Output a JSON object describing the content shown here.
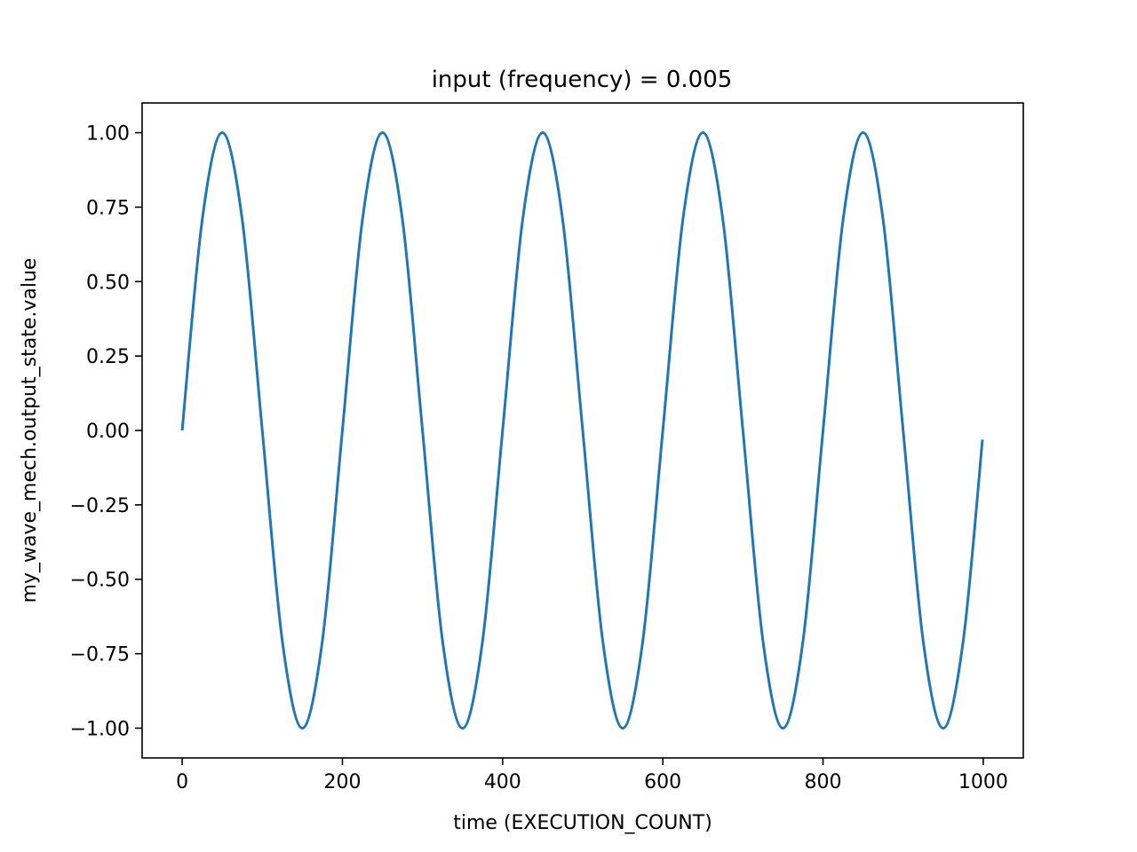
{
  "chart_data": {
    "type": "line",
    "title": "input (frequency) = 0.005",
    "xlabel": "time (EXECUTION_COUNT)",
    "ylabel": "my_wave_mech.output_state.value",
    "xlim": [
      -50,
      1050
    ],
    "ylim": [
      -1.1,
      1.1
    ],
    "xticks": [
      0,
      200,
      400,
      600,
      800,
      1000
    ],
    "xtick_labels": [
      "0",
      "200",
      "400",
      "600",
      "800",
      "1000"
    ],
    "yticks": [
      1.0,
      0.75,
      0.5,
      0.25,
      0.0,
      -0.25,
      -0.5,
      -0.75,
      -1.0
    ],
    "ytick_labels": [
      "1.00",
      "0.75",
      "0.50",
      "0.25",
      "0.00",
      "−0.25",
      "−0.50",
      "−0.75",
      "−1.00"
    ],
    "grid": false,
    "legend": "none",
    "series": [
      {
        "color": "#1f77b4",
        "x": [
          0,
          25,
          50,
          75,
          100,
          125,
          150,
          175,
          200,
          225,
          250,
          275,
          300,
          325,
          350,
          375,
          400,
          425,
          450,
          475,
          500,
          525,
          550,
          575,
          600,
          625,
          650,
          675,
          700,
          725,
          750,
          775,
          800,
          825,
          850,
          875,
          900,
          925,
          950,
          975,
          999
        ],
        "y": [
          0.0,
          0.707,
          1.0,
          0.707,
          0.0,
          -0.707,
          -1.0,
          -0.707,
          0.0,
          0.707,
          1.0,
          0.707,
          0.0,
          -0.707,
          -1.0,
          -0.707,
          0.0,
          0.707,
          1.0,
          0.707,
          0.0,
          -0.707,
          -1.0,
          -0.707,
          0.0,
          0.707,
          1.0,
          0.707,
          0.0,
          -0.707,
          -1.0,
          -0.707,
          0.0,
          0.707,
          1.0,
          0.707,
          0.0,
          -0.707,
          -1.0,
          -0.707,
          -0.031
        ]
      }
    ]
  }
}
